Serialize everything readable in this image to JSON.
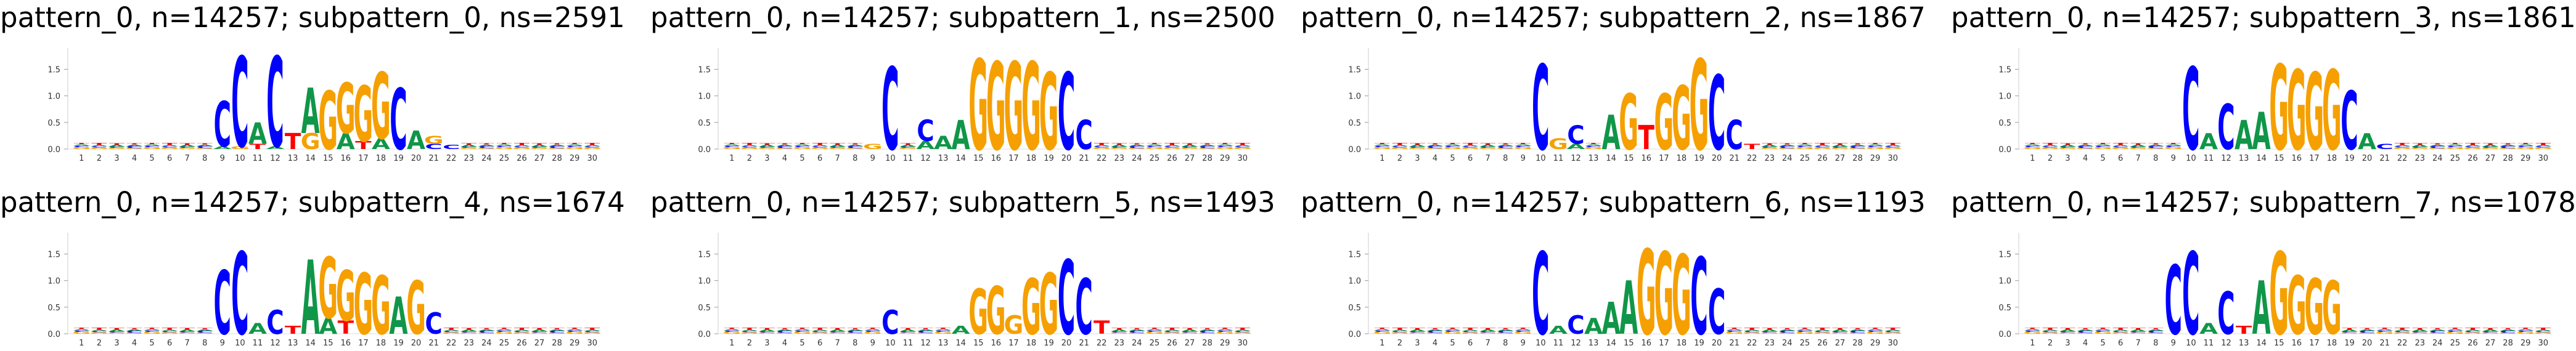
{
  "figure": {
    "background": "#ffffff",
    "colors": {
      "A": "#109648",
      "C": "#0000ff",
      "G": "#f5a000",
      "T": "#ff0000"
    }
  },
  "chart_data": [
    {
      "type": "sequence-logo",
      "title": "pattern_0, n=14257; subpattern_0, ns=2591",
      "positions": [
        1,
        2,
        3,
        4,
        5,
        6,
        7,
        8,
        9,
        10,
        11,
        12,
        13,
        14,
        15,
        16,
        17,
        18,
        19,
        20,
        21,
        22,
        23,
        24,
        25,
        26,
        27,
        28,
        29,
        30
      ],
      "yticks": [
        "0.0",
        "0.5",
        "1.0",
        "1.5"
      ],
      "ylim": [
        0,
        1.9
      ],
      "columns": [
        {
          "pos": 9,
          "stack": [
            [
              "A",
              0.05
            ],
            [
              "C",
              0.85
            ]
          ]
        },
        {
          "pos": 10,
          "stack": [
            [
              "G",
              0.05
            ],
            [
              "C",
              1.7
            ]
          ]
        },
        {
          "pos": 11,
          "stack": [
            [
              "T",
              0.1
            ],
            [
              "A",
              0.4
            ]
          ]
        },
        {
          "pos": 12,
          "stack": [
            [
              "A",
              0.05
            ],
            [
              "C",
              1.7
            ]
          ]
        },
        {
          "pos": 13,
          "stack": [
            [
              "T",
              0.3
            ]
          ]
        },
        {
          "pos": 14,
          "stack": [
            [
              "G",
              0.3
            ],
            [
              "A",
              0.85
            ]
          ]
        },
        {
          "pos": 15,
          "stack": [
            [
              "G",
              1.1
            ]
          ]
        },
        {
          "pos": 16,
          "stack": [
            [
              "A",
              0.3
            ],
            [
              "G",
              0.95
            ]
          ]
        },
        {
          "pos": 17,
          "stack": [
            [
              "T",
              0.15
            ],
            [
              "G",
              1.05
            ]
          ]
        },
        {
          "pos": 18,
          "stack": [
            [
              "A",
              0.2
            ],
            [
              "G",
              1.25
            ]
          ]
        },
        {
          "pos": 19,
          "stack": [
            [
              "C",
              1.15
            ]
          ]
        },
        {
          "pos": 20,
          "stack": [
            [
              "A",
              0.35
            ]
          ]
        },
        {
          "pos": 21,
          "stack": [
            [
              "C",
              0.1
            ],
            [
              "G",
              0.15
            ]
          ]
        },
        {
          "pos": 22,
          "stack": [
            [
              "C",
              0.08
            ]
          ]
        }
      ]
    },
    {
      "type": "sequence-logo",
      "title": "pattern_0, n=14257; subpattern_1, ns=2500",
      "positions": [
        1,
        2,
        3,
        4,
        5,
        6,
        7,
        8,
        9,
        10,
        11,
        12,
        13,
        14,
        15,
        16,
        17,
        18,
        19,
        20,
        21,
        22,
        23,
        24,
        25,
        26,
        27,
        28,
        29,
        30
      ],
      "yticks": [
        "0.0",
        "0.5",
        "1.0",
        "1.5"
      ],
      "ylim": [
        0,
        1.9
      ],
      "columns": [
        {
          "pos": 9,
          "stack": [
            [
              "G",
              0.1
            ]
          ]
        },
        {
          "pos": 10,
          "stack": [
            [
              "C",
              1.55
            ]
          ]
        },
        {
          "pos": 12,
          "stack": [
            [
              "A",
              0.15
            ],
            [
              "C",
              0.4
            ]
          ]
        },
        {
          "pos": 13,
          "stack": [
            [
              "A",
              0.25
            ]
          ]
        },
        {
          "pos": 14,
          "stack": [
            [
              "A",
              0.55
            ]
          ]
        },
        {
          "pos": 15,
          "stack": [
            [
              "G",
              1.7
            ]
          ]
        },
        {
          "pos": 16,
          "stack": [
            [
              "G",
              1.65
            ]
          ]
        },
        {
          "pos": 17,
          "stack": [
            [
              "G",
              1.65
            ]
          ]
        },
        {
          "pos": 18,
          "stack": [
            [
              "G",
              1.65
            ]
          ]
        },
        {
          "pos": 19,
          "stack": [
            [
              "G",
              1.45
            ]
          ]
        },
        {
          "pos": 20,
          "stack": [
            [
              "C",
              1.45
            ]
          ]
        },
        {
          "pos": 21,
          "stack": [
            [
              "C",
              0.55
            ]
          ]
        }
      ]
    },
    {
      "type": "sequence-logo",
      "title": "pattern_0, n=14257; subpattern_2, ns=1867",
      "positions": [
        1,
        2,
        3,
        4,
        5,
        6,
        7,
        8,
        9,
        10,
        11,
        12,
        13,
        14,
        15,
        16,
        17,
        18,
        19,
        20,
        21,
        22,
        23,
        24,
        25,
        26,
        27,
        28,
        29,
        30
      ],
      "yticks": [
        "0.0",
        "0.5",
        "1.0",
        "1.5"
      ],
      "ylim": [
        0,
        1.9
      ],
      "columns": [
        {
          "pos": 10,
          "stack": [
            [
              "C",
              1.6
            ]
          ]
        },
        {
          "pos": 11,
          "stack": [
            [
              "G",
              0.2
            ]
          ]
        },
        {
          "pos": 12,
          "stack": [
            [
              "A",
              0.1
            ],
            [
              "C",
              0.35
            ]
          ]
        },
        {
          "pos": 14,
          "stack": [
            [
              "A",
              0.65
            ]
          ]
        },
        {
          "pos": 15,
          "stack": [
            [
              "G",
              1.05
            ]
          ]
        },
        {
          "pos": 16,
          "stack": [
            [
              "T",
              0.45
            ]
          ]
        },
        {
          "pos": 17,
          "stack": [
            [
              "G",
              1.05
            ]
          ]
        },
        {
          "pos": 18,
          "stack": [
            [
              "G",
              1.2
            ]
          ]
        },
        {
          "pos": 19,
          "stack": [
            [
              "G",
              1.7
            ]
          ]
        },
        {
          "pos": 20,
          "stack": [
            [
              "C",
              1.4
            ]
          ]
        },
        {
          "pos": 21,
          "stack": [
            [
              "C",
              0.55
            ]
          ]
        },
        {
          "pos": 22,
          "stack": [
            [
              "T",
              0.1
            ]
          ]
        }
      ]
    },
    {
      "type": "sequence-logo",
      "title": "pattern_0, n=14257; subpattern_3, ns=1861",
      "positions": [
        1,
        2,
        3,
        4,
        5,
        6,
        7,
        8,
        9,
        10,
        11,
        12,
        13,
        14,
        15,
        16,
        17,
        18,
        19,
        20,
        21,
        22,
        23,
        24,
        25,
        26,
        27,
        28,
        29,
        30
      ],
      "yticks": [
        "0.0",
        "0.5",
        "1.0",
        "1.5"
      ],
      "ylim": [
        0,
        1.9
      ],
      "columns": [
        {
          "pos": 10,
          "stack": [
            [
              "C",
              1.55
            ]
          ]
        },
        {
          "pos": 11,
          "stack": [
            [
              "A",
              0.3
            ]
          ]
        },
        {
          "pos": 12,
          "stack": [
            [
              "C",
              0.85
            ]
          ]
        },
        {
          "pos": 13,
          "stack": [
            [
              "A",
              0.55
            ]
          ]
        },
        {
          "pos": 14,
          "stack": [
            [
              "A",
              0.7
            ]
          ]
        },
        {
          "pos": 15,
          "stack": [
            [
              "G",
              1.6
            ]
          ]
        },
        {
          "pos": 16,
          "stack": [
            [
              "G",
              1.5
            ]
          ]
        },
        {
          "pos": 17,
          "stack": [
            [
              "G",
              1.45
            ]
          ]
        },
        {
          "pos": 18,
          "stack": [
            [
              "G",
              1.5
            ]
          ]
        },
        {
          "pos": 19,
          "stack": [
            [
              "C",
              1.1
            ]
          ]
        },
        {
          "pos": 20,
          "stack": [
            [
              "A",
              0.3
            ]
          ]
        },
        {
          "pos": 21,
          "stack": [
            [
              "C",
              0.1
            ]
          ]
        }
      ]
    },
    {
      "type": "sequence-logo",
      "title": "pattern_0, n=14257; subpattern_4, ns=1674",
      "positions": [
        1,
        2,
        3,
        4,
        5,
        6,
        7,
        8,
        9,
        10,
        11,
        12,
        13,
        14,
        15,
        16,
        17,
        18,
        19,
        20,
        21,
        22,
        23,
        24,
        25,
        26,
        27,
        28,
        29,
        30
      ],
      "yticks": [
        "0.0",
        "0.5",
        "1.0",
        "1.5"
      ],
      "ylim": [
        0,
        1.9
      ],
      "columns": [
        {
          "pos": 9,
          "stack": [
            [
              "C",
              1.2
            ]
          ]
        },
        {
          "pos": 10,
          "stack": [
            [
              "C",
              1.55
            ]
          ]
        },
        {
          "pos": 11,
          "stack": [
            [
              "A",
              0.2
            ]
          ]
        },
        {
          "pos": 12,
          "stack": [
            [
              "C",
              0.45
            ]
          ]
        },
        {
          "pos": 13,
          "stack": [
            [
              "T",
              0.15
            ]
          ]
        },
        {
          "pos": 14,
          "stack": [
            [
              "A",
              1.4
            ]
          ]
        },
        {
          "pos": 15,
          "stack": [
            [
              "A",
              0.3
            ],
            [
              "G",
              1.15
            ]
          ]
        },
        {
          "pos": 16,
          "stack": [
            [
              "T",
              0.25
            ],
            [
              "G",
              0.95
            ]
          ]
        },
        {
          "pos": 17,
          "stack": [
            [
              "G",
              1.15
            ]
          ]
        },
        {
          "pos": 18,
          "stack": [
            [
              "G",
              1.1
            ]
          ]
        },
        {
          "pos": 19,
          "stack": [
            [
              "A",
              0.7
            ]
          ]
        },
        {
          "pos": 20,
          "stack": [
            [
              "G",
              1.0
            ]
          ]
        },
        {
          "pos": 21,
          "stack": [
            [
              "C",
              0.4
            ]
          ]
        }
      ]
    },
    {
      "type": "sequence-logo",
      "title": "pattern_0, n=14257; subpattern_5, ns=1493",
      "positions": [
        1,
        2,
        3,
        4,
        5,
        6,
        7,
        8,
        9,
        10,
        11,
        12,
        13,
        14,
        15,
        16,
        17,
        18,
        19,
        20,
        21,
        22,
        23,
        24,
        25,
        26,
        27,
        28,
        29,
        30
      ],
      "yticks": [
        "0.0",
        "0.5",
        "1.0",
        "1.5"
      ],
      "ylim": [
        0,
        1.9
      ],
      "columns": [
        {
          "pos": 10,
          "stack": [
            [
              "C",
              0.45
            ]
          ]
        },
        {
          "pos": 14,
          "stack": [
            [
              "A",
              0.15
            ]
          ]
        },
        {
          "pos": 15,
          "stack": [
            [
              "G",
              0.85
            ]
          ]
        },
        {
          "pos": 16,
          "stack": [
            [
              "G",
              0.9
            ]
          ]
        },
        {
          "pos": 17,
          "stack": [
            [
              "G",
              0.35
            ]
          ]
        },
        {
          "pos": 18,
          "stack": [
            [
              "G",
              1.05
            ]
          ]
        },
        {
          "pos": 19,
          "stack": [
            [
              "G",
              1.15
            ]
          ]
        },
        {
          "pos": 20,
          "stack": [
            [
              "C",
              1.4
            ]
          ]
        },
        {
          "pos": 21,
          "stack": [
            [
              "C",
              1.05
            ]
          ]
        },
        {
          "pos": 22,
          "stack": [
            [
              "T",
              0.25
            ]
          ]
        }
      ]
    },
    {
      "type": "sequence-logo",
      "title": "pattern_0, n=14257; subpattern_6, ns=1193",
      "positions": [
        1,
        2,
        3,
        4,
        5,
        6,
        7,
        8,
        9,
        10,
        11,
        12,
        13,
        14,
        15,
        16,
        17,
        18,
        19,
        20,
        21,
        22,
        23,
        24,
        25,
        26,
        27,
        28,
        29,
        30
      ],
      "yticks": [
        "0.0",
        "0.5",
        "1.0",
        "1.5"
      ],
      "ylim": [
        0,
        1.9
      ],
      "columns": [
        {
          "pos": 10,
          "stack": [
            [
              "C",
              1.55
            ]
          ]
        },
        {
          "pos": 11,
          "stack": [
            [
              "A",
              0.15
            ]
          ]
        },
        {
          "pos": 12,
          "stack": [
            [
              "C",
              0.35
            ]
          ]
        },
        {
          "pos": 13,
          "stack": [
            [
              "A",
              0.3
            ]
          ]
        },
        {
          "pos": 14,
          "stack": [
            [
              "A",
              0.6
            ]
          ]
        },
        {
          "pos": 15,
          "stack": [
            [
              "A",
              1.0
            ]
          ]
        },
        {
          "pos": 16,
          "stack": [
            [
              "G",
              1.6
            ]
          ]
        },
        {
          "pos": 17,
          "stack": [
            [
              "G",
              1.55
            ]
          ]
        },
        {
          "pos": 18,
          "stack": [
            [
              "G",
              1.5
            ]
          ]
        },
        {
          "pos": 19,
          "stack": [
            [
              "C",
              1.45
            ]
          ]
        },
        {
          "pos": 20,
          "stack": [
            [
              "C",
              0.85
            ]
          ]
        }
      ]
    },
    {
      "type": "sequence-logo",
      "title": "pattern_0, n=14257; subpattern_7, ns=1078",
      "positions": [
        1,
        2,
        3,
        4,
        5,
        6,
        7,
        8,
        9,
        10,
        11,
        12,
        13,
        14,
        15,
        16,
        17,
        18,
        19,
        20,
        21,
        22,
        23,
        24,
        25,
        26,
        27,
        28,
        29,
        30
      ],
      "yticks": [
        "0.0",
        "0.5",
        "1.0",
        "1.5"
      ],
      "ylim": [
        0,
        1.9
      ],
      "columns": [
        {
          "pos": 9,
          "stack": [
            [
              "C",
              1.3
            ]
          ]
        },
        {
          "pos": 10,
          "stack": [
            [
              "C",
              1.55
            ]
          ]
        },
        {
          "pos": 11,
          "stack": [
            [
              "A",
              0.2
            ]
          ]
        },
        {
          "pos": 12,
          "stack": [
            [
              "C",
              0.8
            ]
          ]
        },
        {
          "pos": 13,
          "stack": [
            [
              "T",
              0.15
            ]
          ]
        },
        {
          "pos": 14,
          "stack": [
            [
              "A",
              1.0
            ]
          ]
        },
        {
          "pos": 15,
          "stack": [
            [
              "G",
              1.55
            ]
          ]
        },
        {
          "pos": 16,
          "stack": [
            [
              "G",
              1.1
            ]
          ]
        },
        {
          "pos": 17,
          "stack": [
            [
              "G",
              1.05
            ]
          ]
        },
        {
          "pos": 18,
          "stack": [
            [
              "G",
              1.0
            ]
          ]
        }
      ]
    }
  ]
}
